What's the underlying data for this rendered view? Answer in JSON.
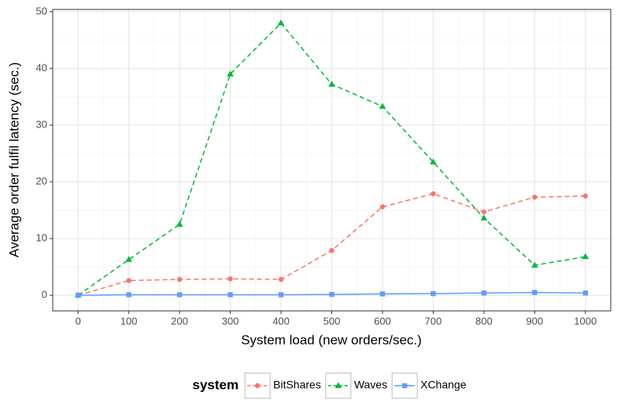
{
  "chart_data": {
    "type": "line",
    "x_label": "System load (new orders/sec.)",
    "y_label": "Average order fulfil latency (sec.)",
    "legend_title": "system",
    "x": [
      0,
      100,
      200,
      300,
      400,
      500,
      600,
      700,
      800,
      900,
      1000
    ],
    "series": [
      {
        "name": "BitShares",
        "color": "#F8766D",
        "linetype": "dashed",
        "marker": "circle",
        "values": [
          0,
          2.6,
          2.8,
          2.9,
          2.8,
          7.9,
          15.6,
          17.9,
          14.7,
          17.3,
          17.5
        ]
      },
      {
        "name": "Waves",
        "color": "#00BA38",
        "linetype": "dashed",
        "marker": "triangle",
        "values": [
          0,
          6.3,
          12.5,
          39.0,
          48.0,
          37.2,
          33.3,
          23.5,
          13.6,
          5.3,
          6.8
        ]
      },
      {
        "name": "XChange",
        "color": "#619CFF",
        "linetype": "solid",
        "marker": "square",
        "values": [
          0,
          0.1,
          0.1,
          0.1,
          0.1,
          0.15,
          0.25,
          0.3,
          0.4,
          0.5,
          0.4
        ]
      }
    ],
    "xlim": [
      -50,
      1050
    ],
    "ylim": [
      -2.75,
      50.4
    ],
    "xticks": [
      0,
      100,
      200,
      300,
      400,
      500,
      600,
      700,
      800,
      900,
      1000
    ],
    "yticks": [
      0,
      10,
      20,
      30,
      40,
      50
    ],
    "grid": true,
    "minor_grid": true,
    "legend_position": "bottom"
  }
}
